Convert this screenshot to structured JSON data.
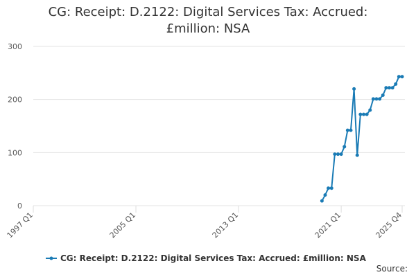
{
  "chart_data": {
    "type": "line",
    "title": "CG: Receipt: D.2122: Digital Services Tax: Accrued: £million: NSA",
    "source": "Source:",
    "categories": [
      "1997 Q1",
      null,
      null,
      null,
      null,
      null,
      null,
      null,
      null,
      null,
      null,
      null,
      null,
      null,
      null,
      null,
      null,
      null,
      null,
      null,
      null,
      null,
      null,
      null,
      null,
      null,
      null,
      null,
      null,
      null,
      null,
      null,
      "2005 Q1",
      null,
      null,
      null,
      null,
      null,
      null,
      null,
      null,
      null,
      null,
      null,
      null,
      null,
      null,
      null,
      null,
      null,
      null,
      null,
      null,
      null,
      null,
      null,
      null,
      null,
      null,
      null,
      null,
      null,
      null,
      null,
      "2013 Q1",
      null,
      null,
      null,
      null,
      null,
      null,
      null,
      null,
      null,
      null,
      null,
      null,
      null,
      null,
      null,
      null,
      null,
      null,
      null,
      null,
      null,
      null,
      null,
      null,
      null,
      null,
      null,
      null,
      null,
      null,
      null,
      "2021 Q1",
      null,
      null,
      null,
      null,
      null,
      null,
      null,
      null,
      null,
      null,
      null,
      null,
      null,
      null,
      null,
      null,
      null,
      null,
      "2025 Q4"
    ],
    "series": [
      {
        "name": "CG: Receipt: D.2122: Digital Services Tax: Accrued: £million: NSA",
        "color": "#1a7bb5",
        "values": [
          null,
          null,
          null,
          null,
          null,
          null,
          null,
          null,
          null,
          null,
          null,
          null,
          null,
          null,
          null,
          null,
          null,
          null,
          null,
          null,
          null,
          null,
          null,
          null,
          null,
          null,
          null,
          null,
          null,
          null,
          null,
          null,
          null,
          null,
          null,
          null,
          null,
          null,
          null,
          null,
          null,
          null,
          null,
          null,
          null,
          null,
          null,
          null,
          null,
          null,
          null,
          null,
          null,
          null,
          null,
          null,
          null,
          null,
          null,
          null,
          null,
          null,
          null,
          null,
          null,
          null,
          null,
          null,
          null,
          null,
          null,
          null,
          null,
          null,
          null,
          null,
          null,
          null,
          null,
          null,
          null,
          null,
          null,
          null,
          null,
          null,
          null,
          null,
          null,
          null,
          9,
          20,
          33,
          33,
          97,
          97,
          97,
          111,
          142,
          142,
          220,
          95,
          172,
          172,
          172,
          180,
          201,
          201,
          201,
          208,
          222,
          222,
          222,
          229,
          243,
          243
        ]
      }
    ],
    "ylim": [
      0,
      300
    ],
    "yticks": [
      0,
      100,
      200,
      300
    ],
    "grid": true
  }
}
